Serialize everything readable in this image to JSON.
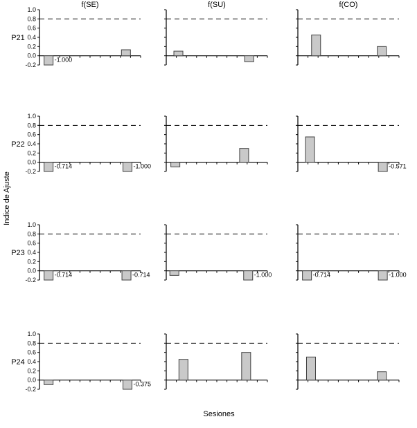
{
  "figure": {
    "background": "#ffffff",
    "axis_color": "#000000"
  },
  "chart_data": {
    "type": "bar",
    "title": "",
    "xlabel": "Sesiones",
    "ylabel": "Indice de Ajuste",
    "rows": [
      "P21",
      "P22",
      "P23",
      "P24"
    ],
    "cols": [
      "f(SE)",
      "f(SU)",
      "f(CO)"
    ],
    "ylim": [
      -0.2,
      1.0
    ],
    "yticks": [
      1.0,
      0.8,
      0.6,
      0.4,
      0.2,
      0.0,
      -0.2
    ],
    "reference_line_y": 0.8,
    "reference_line_style": "dashed",
    "grid": "off",
    "bar_fill": "#c9c9c9",
    "bar_stroke": "#404040",
    "subplots": [
      {
        "row": "P21",
        "col": "f(SE)",
        "bars": [
          {
            "x": 0.09,
            "value": -1.0,
            "label": "-1.000"
          },
          {
            "x": 0.855,
            "value": 0.13
          }
        ]
      },
      {
        "row": "P21",
        "col": "f(SU)",
        "bars": [
          {
            "x": 0.12,
            "value": 0.1
          },
          {
            "x": 0.82,
            "value": -0.13
          }
        ]
      },
      {
        "row": "P21",
        "col": "f(CO)",
        "bars": [
          {
            "x": 0.18,
            "value": 0.45
          },
          {
            "x": 0.83,
            "value": 0.2
          }
        ]
      },
      {
        "row": "P22",
        "col": "f(SE)",
        "bars": [
          {
            "x": 0.09,
            "value": -0.714,
            "label": "-0.714"
          },
          {
            "x": 0.87,
            "value": -1.0,
            "label": "-1.000"
          }
        ]
      },
      {
        "row": "P22",
        "col": "f(SU)",
        "bars": [
          {
            "x": 0.09,
            "value": -0.1
          },
          {
            "x": 0.77,
            "value": 0.3
          }
        ]
      },
      {
        "row": "P22",
        "col": "f(CO)",
        "bars": [
          {
            "x": 0.12,
            "value": 0.55
          },
          {
            "x": 0.84,
            "value": -0.571,
            "label": "-0.571"
          }
        ]
      },
      {
        "row": "P23",
        "col": "f(SE)",
        "bars": [
          {
            "x": 0.09,
            "value": -0.714,
            "label": "-0.714"
          },
          {
            "x": 0.86,
            "value": -0.714,
            "label": "-0.714"
          }
        ]
      },
      {
        "row": "P23",
        "col": "f(SU)",
        "bars": [
          {
            "x": 0.08,
            "value": -0.1
          },
          {
            "x": 0.81,
            "value": -1.0,
            "label": "-1.000"
          }
        ]
      },
      {
        "row": "P23",
        "col": "f(CO)",
        "bars": [
          {
            "x": 0.09,
            "value": -0.714,
            "label": "-0.714"
          },
          {
            "x": 0.84,
            "value": -1.0,
            "label": "-1.000"
          }
        ]
      },
      {
        "row": "P24",
        "col": "f(SE)",
        "bars": [
          {
            "x": 0.09,
            "value": -0.1
          },
          {
            "x": 0.87,
            "value": -0.375,
            "label": "-0.375"
          }
        ]
      },
      {
        "row": "P24",
        "col": "f(SU)",
        "bars": [
          {
            "x": 0.17,
            "value": 0.45
          },
          {
            "x": 0.79,
            "value": 0.6
          }
        ]
      },
      {
        "row": "P24",
        "col": "f(CO)",
        "bars": [
          {
            "x": 0.13,
            "value": 0.5
          },
          {
            "x": 0.83,
            "value": 0.18
          }
        ]
      }
    ]
  }
}
